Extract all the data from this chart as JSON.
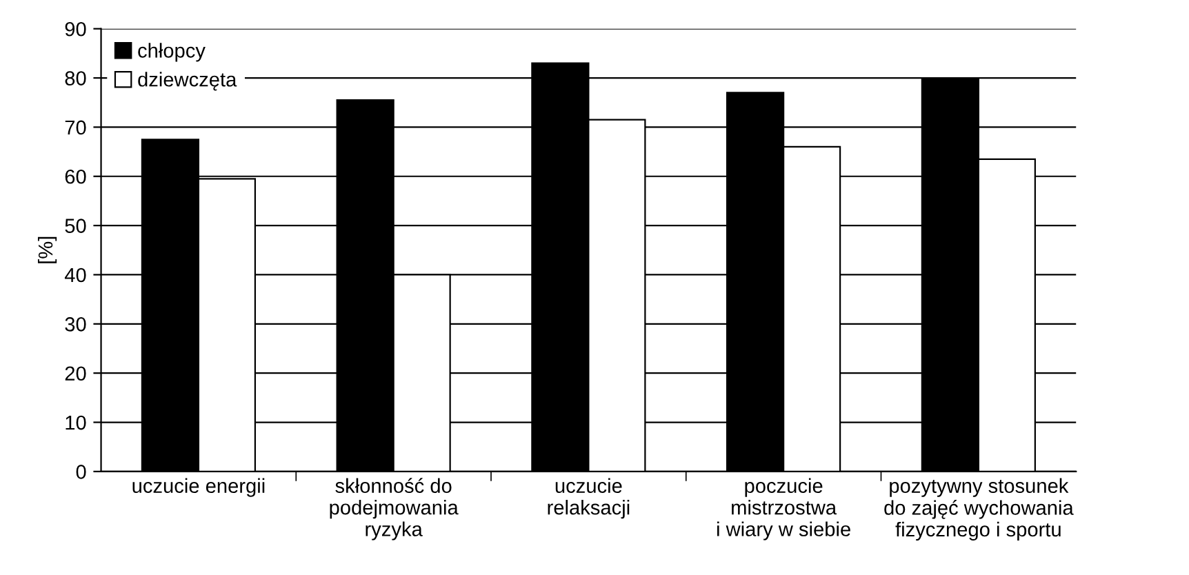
{
  "chart_data": {
    "type": "bar",
    "ylabel": "[%]",
    "categories": [
      "uczucie energii",
      "skłonność do\npodejmowania\nryzyka",
      "uczucie\nrelaksacji",
      "poczucie\nmistrzostwa\ni wiary w siebie",
      "pozytywny stosunek\ndo zajęć wychowania\nfizycznego i sportu"
    ],
    "series": [
      {
        "name": "chłopcy",
        "color": "#000000",
        "values": [
          67.5,
          75.5,
          83,
          77,
          80
        ]
      },
      {
        "name": "dziewczęta",
        "color": "#ffffff",
        "values": [
          59.5,
          40,
          71.5,
          66,
          63.5
        ]
      }
    ],
    "ylim": [
      0,
      90
    ],
    "yticks": [
      0,
      10,
      20,
      30,
      40,
      50,
      60,
      70,
      80,
      90
    ],
    "grid": "y",
    "legend": "top left"
  }
}
